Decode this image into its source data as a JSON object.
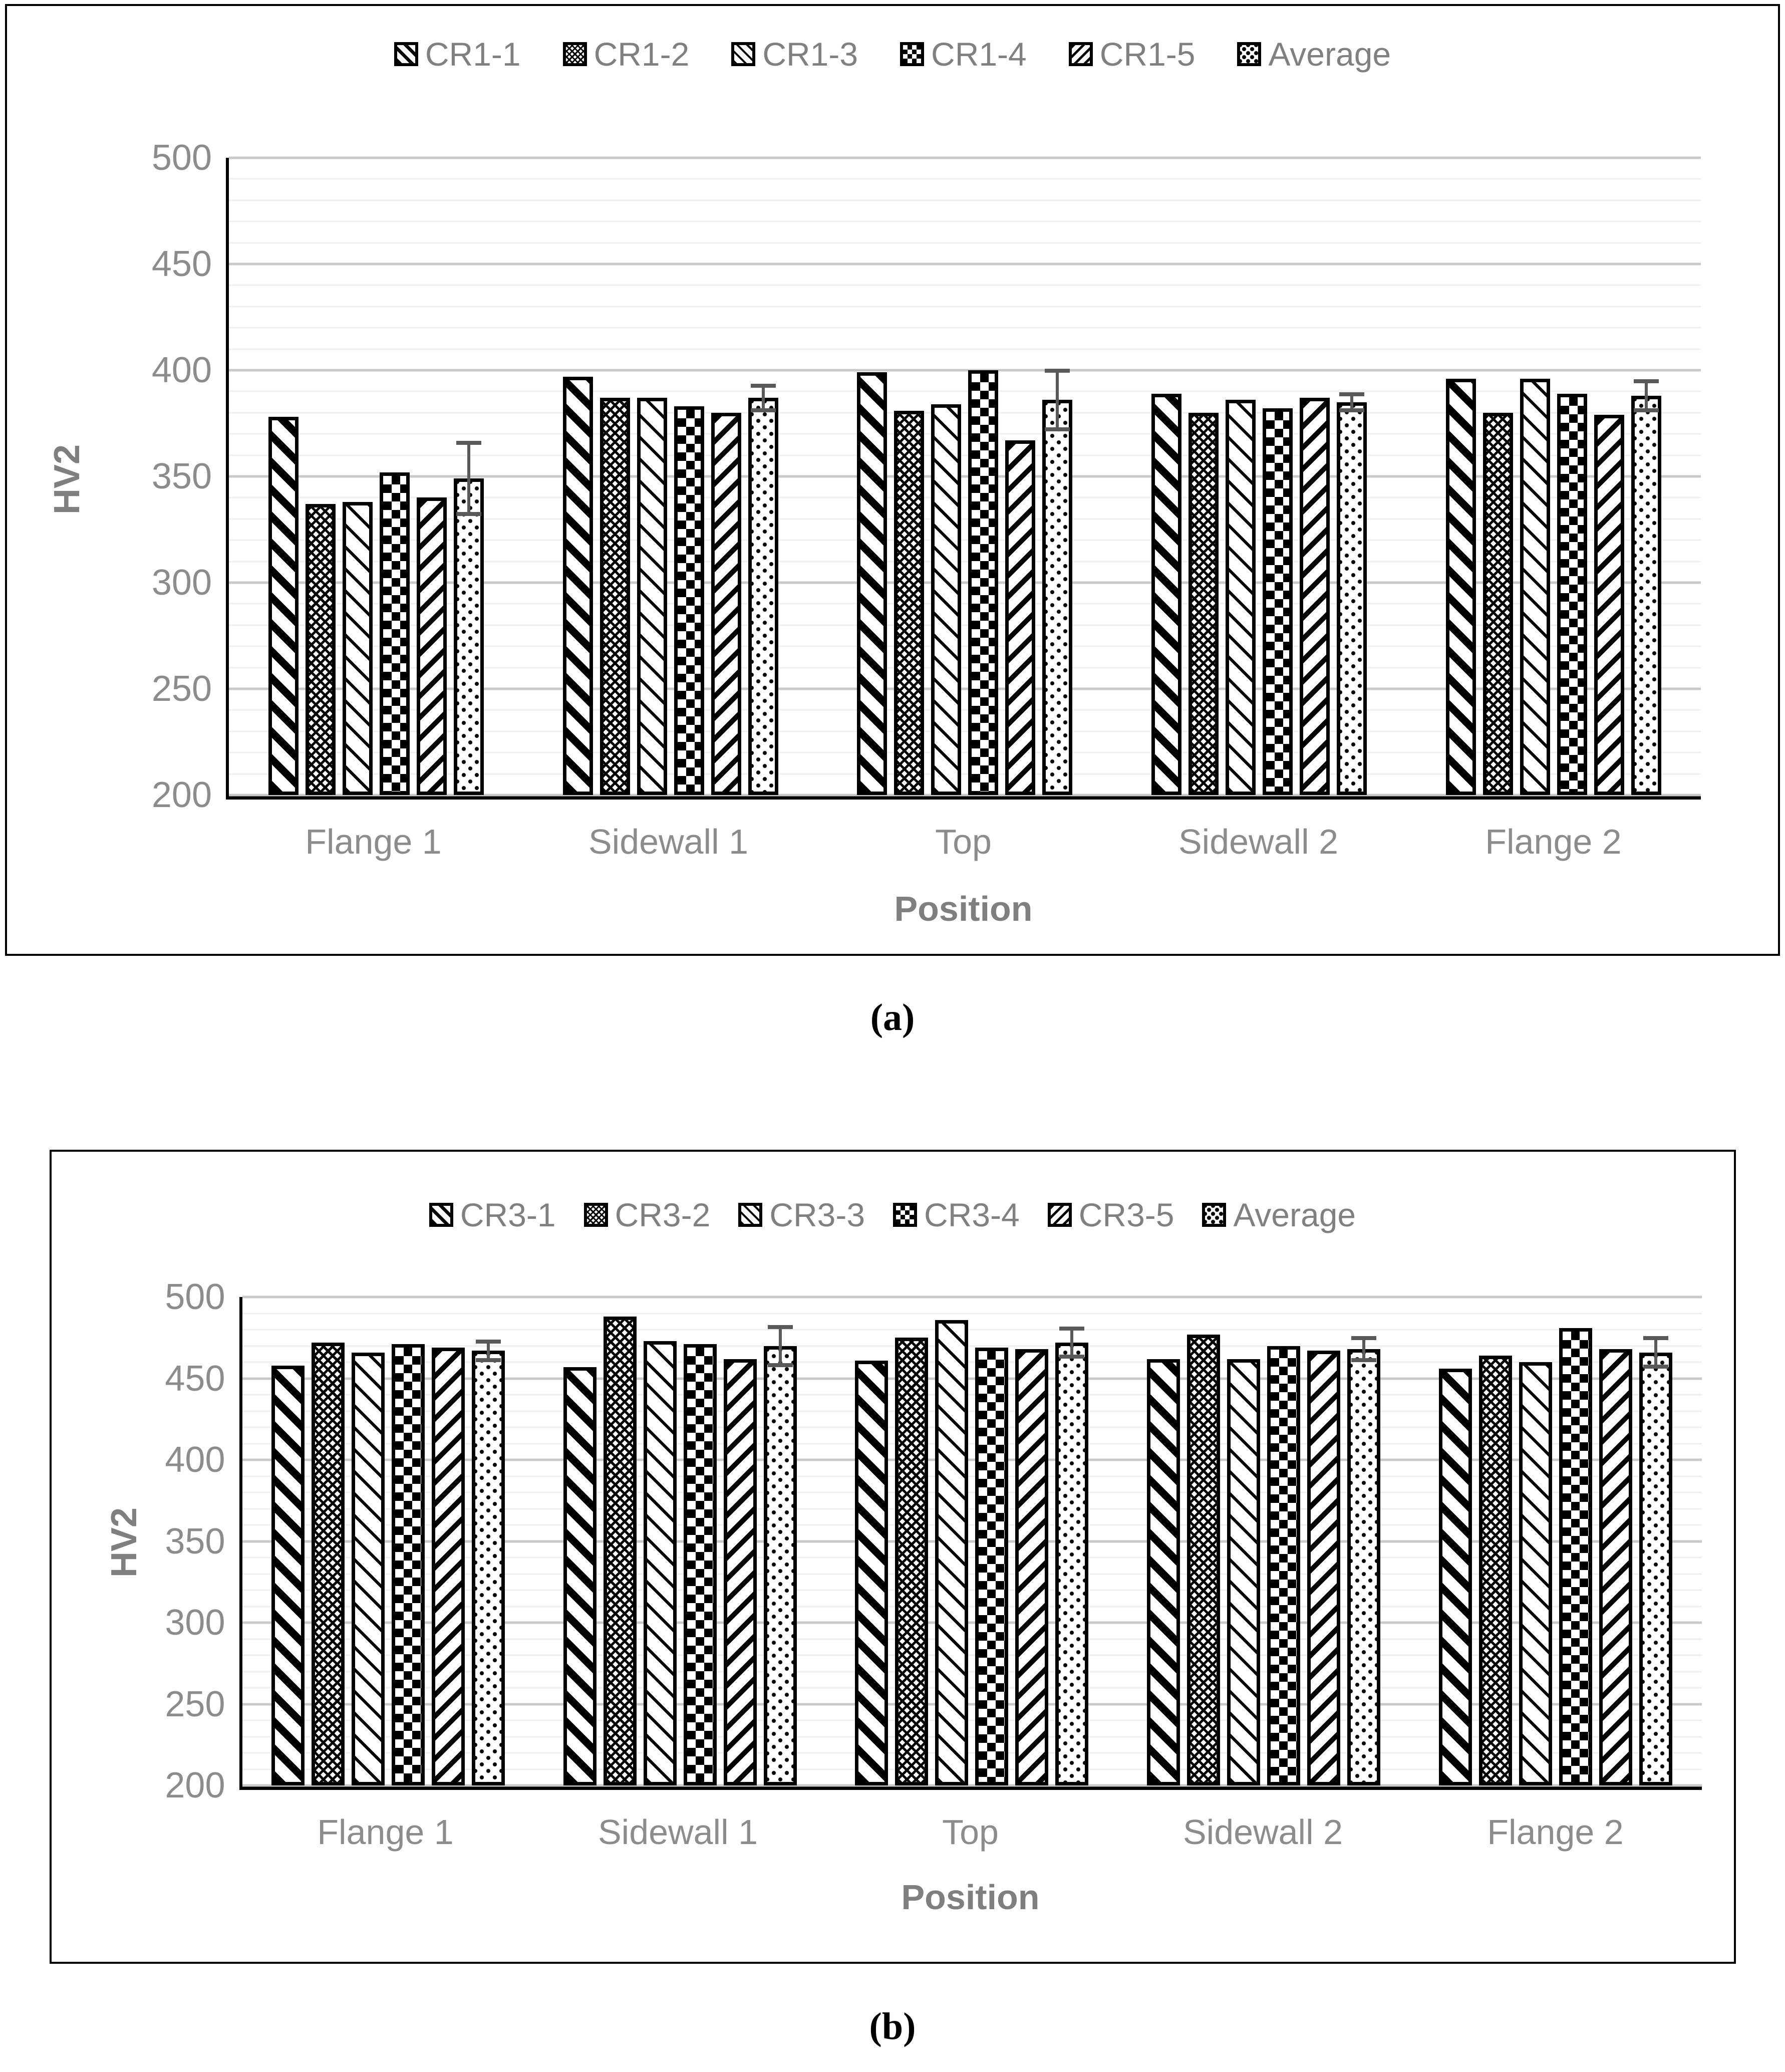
{
  "chart_data": [
    {
      "type": "bar",
      "panel": "(a)",
      "title": "",
      "xlabel": "Position",
      "ylabel": "HV2",
      "categories": [
        "Flange 1",
        "Sidewall 1",
        "Top",
        "Sidewall 2",
        "Flange 2"
      ],
      "series": [
        {
          "name": "CR1-1",
          "pattern": "bold-diagonal-stripe-icon",
          "values": [
            378,
            397,
            399,
            389,
            396
          ]
        },
        {
          "name": "CR1-2",
          "pattern": "diamond-lattice-icon",
          "values": [
            337,
            387,
            381,
            380,
            380
          ]
        },
        {
          "name": "CR1-3",
          "pattern": "thin-diagonal-stripe-icon",
          "values": [
            338,
            387,
            384,
            386,
            396
          ]
        },
        {
          "name": "CR1-4",
          "pattern": "checkerboard-icon",
          "values": [
            352,
            383,
            400,
            382,
            389
          ]
        },
        {
          "name": "CR1-5",
          "pattern": "reverse-diagonal-stripe-icon",
          "values": [
            340,
            380,
            367,
            387,
            379
          ]
        },
        {
          "name": "Average",
          "pattern": "dotted-icon",
          "values": [
            349,
            387,
            386,
            385,
            388
          ]
        }
      ],
      "error_bars": {
        "series": "Average",
        "plus_minus": [
          17,
          6,
          14,
          4,
          7
        ]
      },
      "ylim": [
        200,
        500
      ],
      "ytick_step": 50,
      "minor_grid_step": 10,
      "yticks": [
        200,
        250,
        300,
        350,
        400,
        450,
        500
      ],
      "legend_position": "top",
      "grid": true,
      "colors": {
        "axis": "#000000",
        "major_grid": "#c9c9c9",
        "minor_grid": "#efefef",
        "label_gray": "#8c8c8c",
        "error_bar": "#595959"
      }
    },
    {
      "type": "bar",
      "panel": "(b)",
      "title": "",
      "xlabel": "Position",
      "ylabel": "HV2",
      "categories": [
        "Flange 1",
        "Sidewall 1",
        "Top",
        "Sidewall 2",
        "Flange 2"
      ],
      "series": [
        {
          "name": "CR3-1",
          "pattern": "bold-diagonal-stripe-icon",
          "values": [
            458,
            457,
            461,
            462,
            456
          ]
        },
        {
          "name": "CR3-2",
          "pattern": "diamond-lattice-icon",
          "values": [
            472,
            488,
            475,
            477,
            464
          ]
        },
        {
          "name": "CR3-3",
          "pattern": "thin-diagonal-stripe-icon",
          "values": [
            466,
            473,
            486,
            462,
            460
          ]
        },
        {
          "name": "CR3-4",
          "pattern": "checkerboard-icon",
          "values": [
            471,
            471,
            469,
            470,
            481
          ]
        },
        {
          "name": "CR3-5",
          "pattern": "reverse-diagonal-stripe-icon",
          "values": [
            469,
            462,
            468,
            467,
            468
          ]
        },
        {
          "name": "Average",
          "pattern": "dotted-icon",
          "values": [
            467,
            470,
            472,
            468,
            466
          ]
        }
      ],
      "error_bars": {
        "series": "Average",
        "plus_minus": [
          6,
          12,
          9,
          7,
          9
        ]
      },
      "ylim": [
        200,
        500
      ],
      "ytick_step": 50,
      "minor_grid_step": 10,
      "yticks": [
        200,
        250,
        300,
        350,
        400,
        450,
        500
      ],
      "legend_position": "top",
      "grid": true,
      "colors": {
        "axis": "#000000",
        "major_grid": "#c9c9c9",
        "minor_grid": "#efefef",
        "label_gray": "#8c8c8c",
        "error_bar": "#595959"
      }
    }
  ]
}
